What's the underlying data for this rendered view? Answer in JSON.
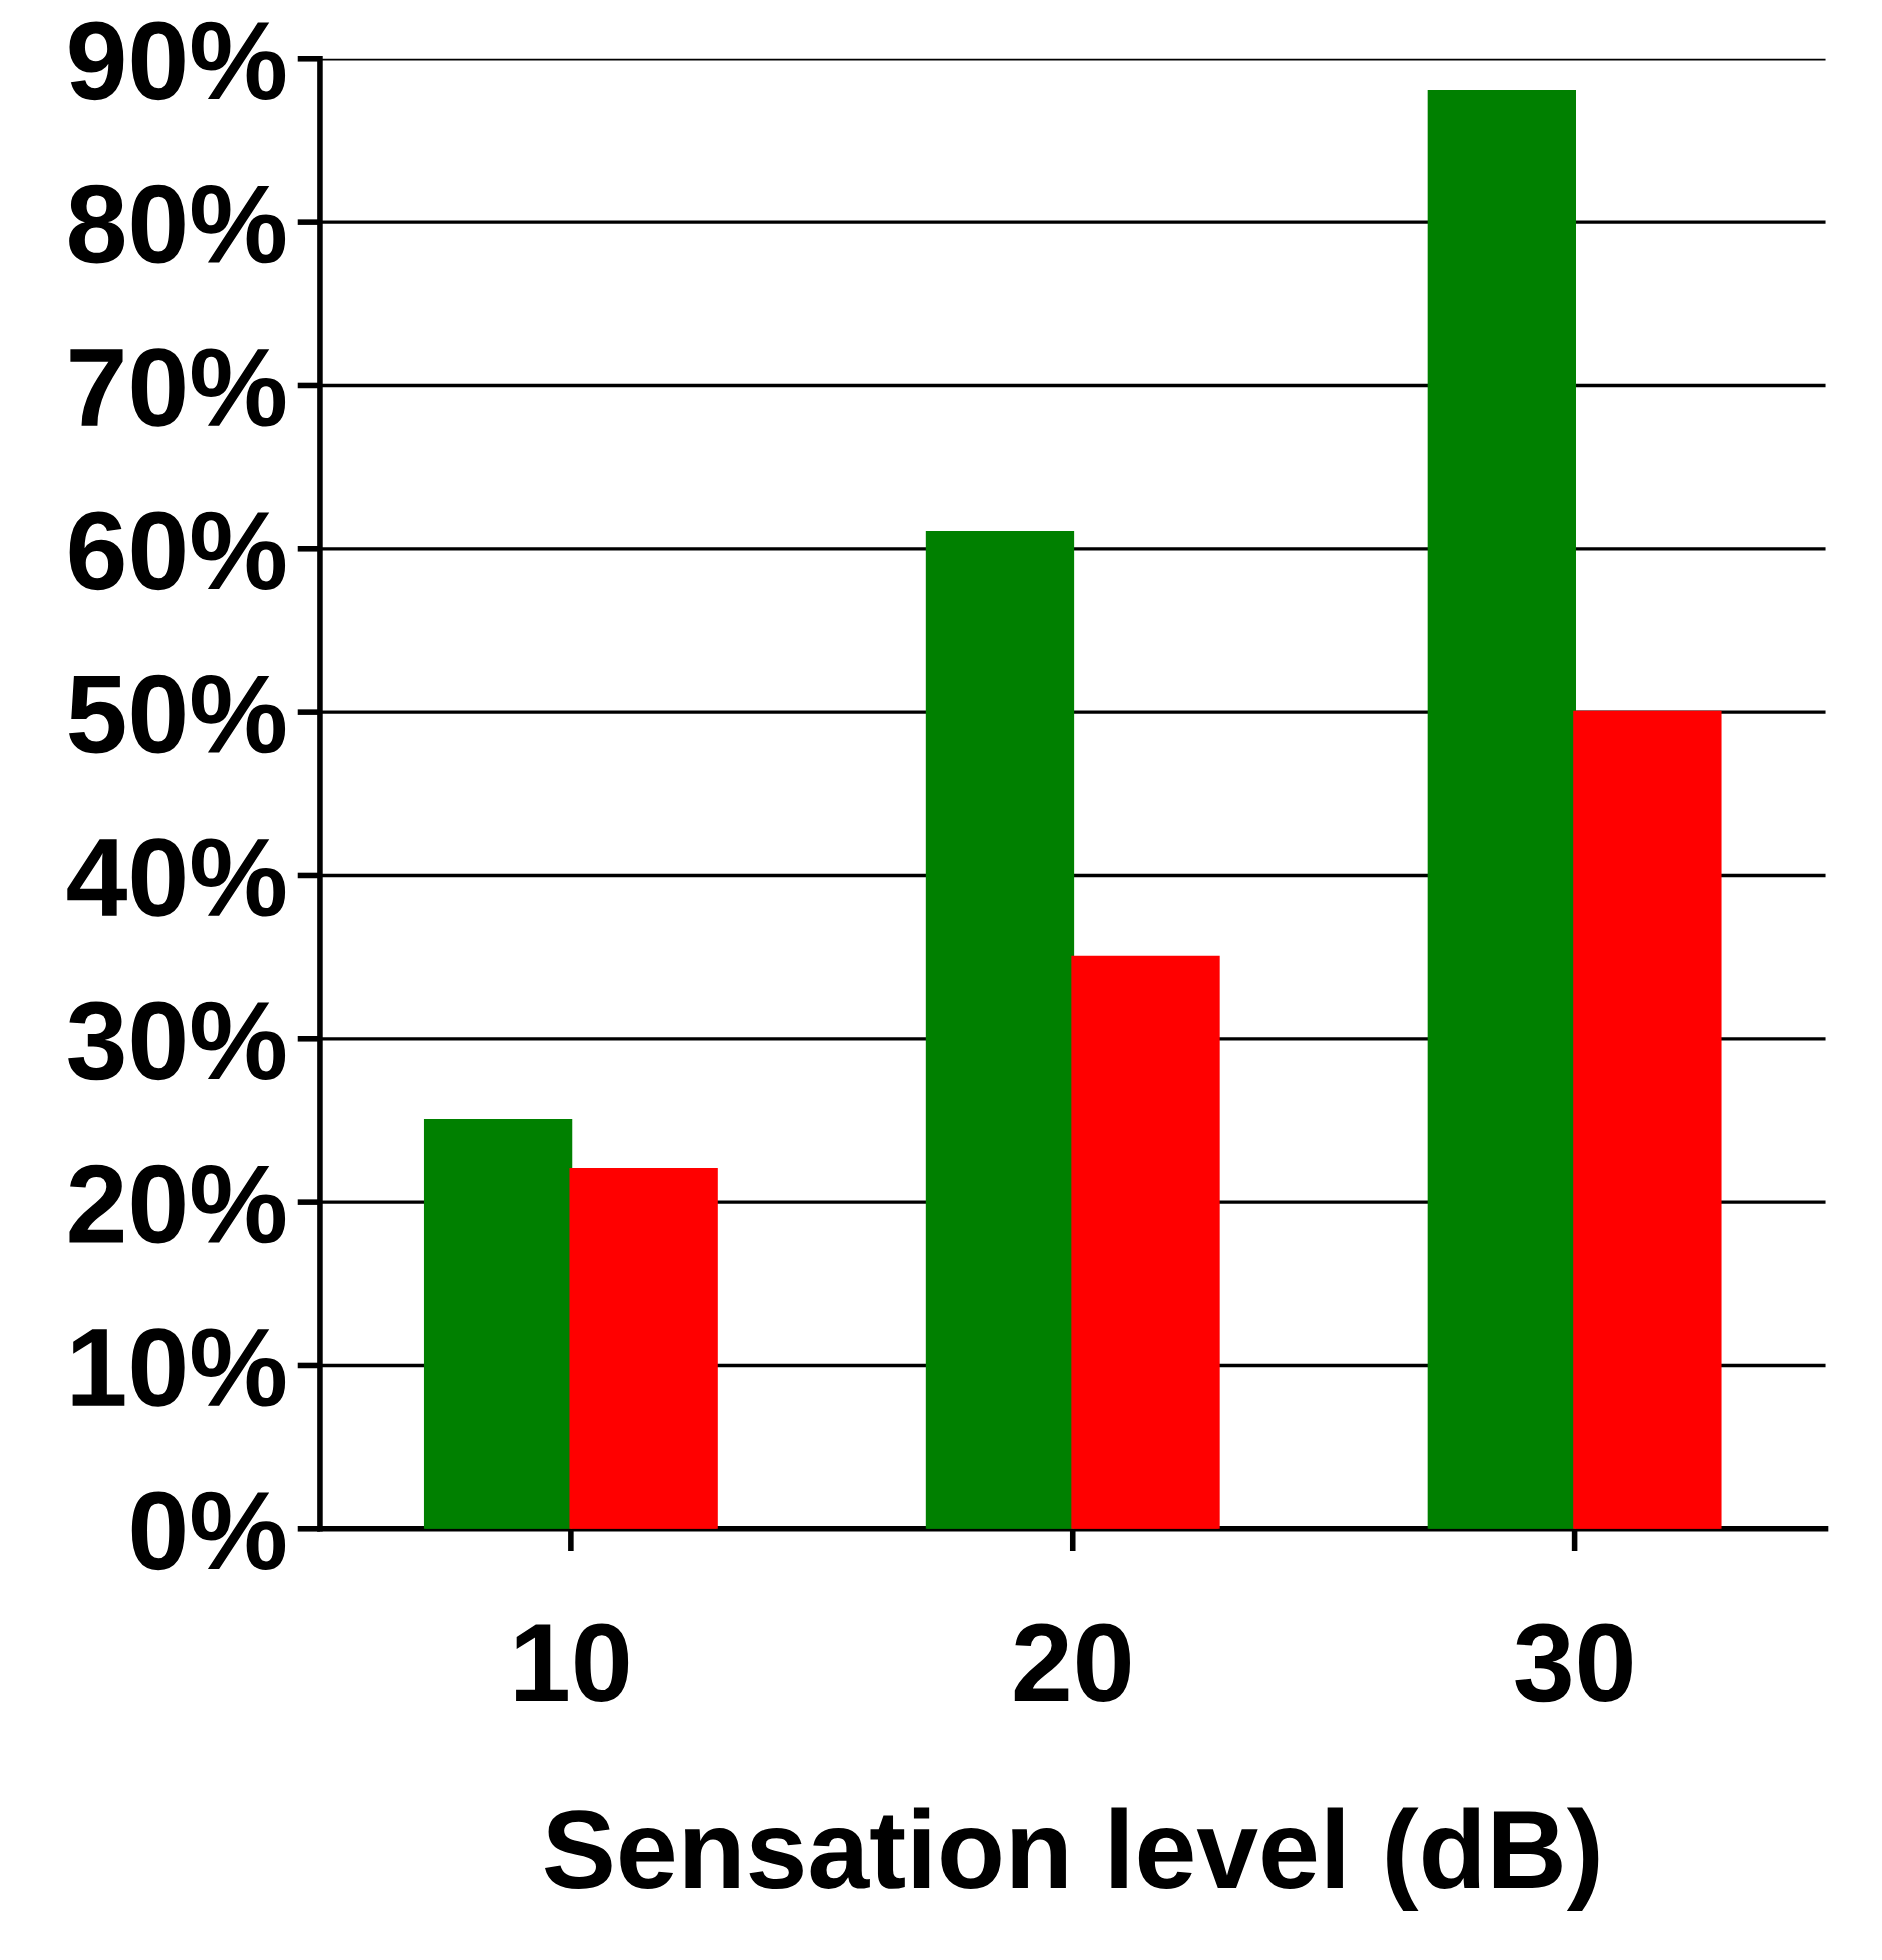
{
  "chart_data": {
    "type": "bar",
    "xlabel": "Sensation level (dB)",
    "categories": [
      "10",
      "20",
      "30"
    ],
    "series": [
      {
        "color": "#008000",
        "values": [
          25,
          61,
          88
        ]
      },
      {
        "color": "#ff0000",
        "values": [
          22,
          35,
          50
        ]
      }
    ],
    "ylim": [
      0,
      90
    ],
    "yticks": [
      {
        "value": 0,
        "label": "0%"
      },
      {
        "value": 10,
        "label": "10%"
      },
      {
        "value": 20,
        "label": "20%"
      },
      {
        "value": 30,
        "label": "30%"
      },
      {
        "value": 40,
        "label": "40%"
      },
      {
        "value": 50,
        "label": "50%"
      },
      {
        "value": 60,
        "label": "60%"
      },
      {
        "value": 70,
        "label": "70%"
      },
      {
        "value": 80,
        "label": "80%"
      },
      {
        "value": 90,
        "label": "90%"
      }
    ],
    "grid": "y"
  }
}
